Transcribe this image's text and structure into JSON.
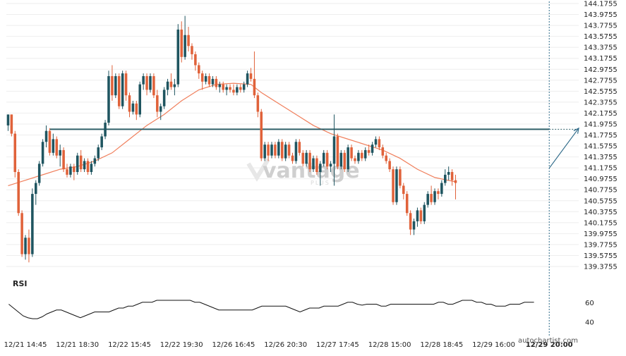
{
  "watermark": {
    "brand": "vantage",
    "sub": "PLUS"
  },
  "credit": "autochartist.com",
  "colors": {
    "bull": "#1f5560",
    "bear": "#e0623a",
    "ma": "#f07f5c",
    "level": "#2f5f68",
    "rsi": "#111111",
    "grid": "#eeeeee",
    "projection": "#2f6b8a"
  },
  "chart_data": {
    "type": "candlestick",
    "instrument_timeframe": "hourly",
    "price_axis": {
      "min": 139.3755,
      "max": 144.1755,
      "ticks": [
        "144.1755",
        "143.9755",
        "143.7755",
        "143.5755",
        "143.3755",
        "143.1755",
        "142.9755",
        "142.7755",
        "142.5755",
        "142.3755",
        "142.1755",
        "141.9755",
        "141.7755",
        "141.5755",
        "141.3755",
        "141.1755",
        "140.9755",
        "140.7755",
        "140.5755",
        "140.3755",
        "140.1755",
        "139.9755",
        "139.7755",
        "139.5755",
        "139.3755"
      ]
    },
    "time_axis": {
      "ticks": [
        {
          "label": "12/21 14:45",
          "bar": 5
        },
        {
          "label": "12/21 18:30",
          "bar": 20
        },
        {
          "label": "12/22 15:45",
          "bar": 35
        },
        {
          "label": "12/22 19:30",
          "bar": 50
        },
        {
          "label": "12/26 16:45",
          "bar": 65
        },
        {
          "label": "12/26 20:30",
          "bar": 80
        },
        {
          "label": "12/27 17:45",
          "bar": 95
        },
        {
          "label": "12/28 15:00",
          "bar": 110
        },
        {
          "label": "12/28 18:45",
          "bar": 125
        },
        {
          "label": "12/29 16:00",
          "bar": 140
        },
        {
          "label": "12/29 20:00",
          "bar": 156,
          "bold": true
        }
      ]
    },
    "bar_count_span": 165,
    "current_bar": 156,
    "horizontal_level": {
      "price": 141.88,
      "from_bar": 12,
      "to_bar": 156
    },
    "projection": {
      "from_bar": 156,
      "from_price": 141.17,
      "to_bar": 165,
      "to_price": 141.9
    },
    "candles": [
      [
        0,
        141.95,
        142.15,
        141.85,
        142.15
      ],
      [
        1,
        142.15,
        142.15,
        141.75,
        141.8
      ],
      [
        2,
        141.8,
        141.85,
        141.0,
        141.1
      ],
      [
        3,
        141.1,
        141.15,
        140.3,
        140.35
      ],
      [
        4,
        140.35,
        140.4,
        139.55,
        139.6
      ],
      [
        5,
        139.6,
        139.95,
        139.5,
        139.9
      ],
      [
        6,
        139.9,
        140.05,
        139.45,
        139.6
      ],
      [
        7,
        139.6,
        140.8,
        139.55,
        140.7
      ],
      [
        8,
        140.7,
        140.95,
        140.5,
        140.9
      ],
      [
        9,
        140.9,
        141.3,
        140.85,
        141.25
      ],
      [
        10,
        141.25,
        141.7,
        141.2,
        141.65
      ],
      [
        11,
        141.65,
        141.95,
        141.55,
        141.85
      ],
      [
        12,
        141.85,
        141.9,
        141.4,
        141.45
      ],
      [
        13,
        141.45,
        141.8,
        141.4,
        141.7
      ],
      [
        14,
        141.7,
        141.75,
        141.35,
        141.4
      ],
      [
        15,
        141.4,
        141.6,
        141.2,
        141.5
      ],
      [
        16,
        141.5,
        141.55,
        141.1,
        141.15
      ],
      [
        17,
        141.15,
        141.25,
        141.0,
        141.05
      ],
      [
        18,
        141.05,
        141.25,
        141.0,
        141.2
      ],
      [
        19,
        141.2,
        141.25,
        140.95,
        141.1
      ],
      [
        20,
        141.1,
        141.45,
        141.05,
        141.4
      ],
      [
        21,
        141.4,
        141.5,
        141.1,
        141.15
      ],
      [
        22,
        141.15,
        141.35,
        141.1,
        141.3
      ],
      [
        23,
        141.3,
        141.35,
        141.05,
        141.1
      ],
      [
        24,
        141.1,
        141.3,
        141.05,
        141.25
      ],
      [
        25,
        141.25,
        141.4,
        141.2,
        141.35
      ],
      [
        26,
        141.35,
        141.6,
        141.3,
        141.55
      ],
      [
        27,
        141.55,
        141.8,
        141.5,
        141.75
      ],
      [
        28,
        141.75,
        142.05,
        141.7,
        142.0
      ],
      [
        29,
        142.0,
        142.95,
        141.95,
        142.85
      ],
      [
        30,
        142.85,
        143.05,
        142.4,
        142.5
      ],
      [
        31,
        142.5,
        142.9,
        142.45,
        142.85
      ],
      [
        32,
        142.85,
        142.9,
        142.25,
        142.3
      ],
      [
        33,
        142.3,
        142.95,
        142.25,
        142.9
      ],
      [
        34,
        142.9,
        142.95,
        142.4,
        142.5
      ],
      [
        35,
        142.5,
        142.55,
        142.1,
        142.2
      ],
      [
        36,
        142.2,
        142.4,
        142.15,
        142.35
      ],
      [
        37,
        142.35,
        142.4,
        142.05,
        142.15
      ],
      [
        38,
        142.15,
        142.75,
        142.1,
        142.7
      ],
      [
        39,
        142.7,
        142.9,
        142.6,
        142.85
      ],
      [
        40,
        142.85,
        142.9,
        142.5,
        142.6
      ],
      [
        41,
        142.6,
        142.9,
        142.55,
        142.85
      ],
      [
        42,
        142.85,
        142.9,
        142.45,
        142.5
      ],
      [
        43,
        142.5,
        142.6,
        142.1,
        142.2
      ],
      [
        44,
        142.2,
        142.35,
        142.05,
        142.3
      ],
      [
        45,
        142.3,
        142.65,
        142.25,
        142.6
      ],
      [
        46,
        142.6,
        142.8,
        142.5,
        142.75
      ],
      [
        47,
        142.75,
        142.9,
        142.6,
        142.65
      ],
      [
        48,
        142.65,
        142.8,
        142.5,
        142.7
      ],
      [
        49,
        142.7,
        143.8,
        142.65,
        143.7
      ],
      [
        50,
        143.7,
        143.85,
        143.1,
        143.2
      ],
      [
        51,
        143.2,
        143.95,
        143.15,
        143.6
      ],
      [
        52,
        143.6,
        143.75,
        143.3,
        143.4
      ],
      [
        53,
        143.4,
        143.45,
        143.15,
        143.25
      ],
      [
        54,
        143.25,
        143.3,
        142.95,
        143.05
      ],
      [
        55,
        143.05,
        143.1,
        142.8,
        142.9
      ],
      [
        56,
        142.9,
        142.95,
        142.6,
        142.75
      ],
      [
        57,
        142.75,
        142.9,
        142.7,
        142.85
      ],
      [
        58,
        142.85,
        142.9,
        142.65,
        142.7
      ],
      [
        59,
        142.7,
        142.85,
        142.65,
        142.8
      ],
      [
        60,
        142.8,
        142.85,
        142.6,
        142.65
      ],
      [
        61,
        142.65,
        142.75,
        142.55,
        142.7
      ],
      [
        62,
        142.7,
        142.75,
        142.55,
        142.6
      ],
      [
        63,
        142.6,
        142.7,
        142.5,
        142.65
      ],
      [
        64,
        142.65,
        142.7,
        142.55,
        142.6
      ],
      [
        65,
        142.6,
        142.7,
        142.5,
        142.55
      ],
      [
        66,
        142.55,
        142.7,
        142.5,
        142.65
      ],
      [
        67,
        142.65,
        142.7,
        142.55,
        142.6
      ],
      [
        68,
        142.6,
        142.75,
        142.55,
        142.7
      ],
      [
        69,
        142.7,
        142.95,
        142.65,
        142.9
      ],
      [
        70,
        142.9,
        143.0,
        142.75,
        142.8
      ],
      [
        71,
        142.8,
        143.3,
        142.45,
        142.5
      ],
      [
        72,
        142.5,
        142.55,
        142.1,
        142.2
      ],
      [
        73,
        142.2,
        142.25,
        141.3,
        141.35
      ],
      [
        74,
        141.35,
        141.65,
        141.3,
        141.6
      ],
      [
        75,
        141.6,
        141.65,
        141.3,
        141.4
      ],
      [
        76,
        141.4,
        141.65,
        141.35,
        141.6
      ],
      [
        77,
        141.6,
        141.65,
        141.35,
        141.4
      ],
      [
        78,
        141.4,
        141.7,
        141.35,
        141.65
      ],
      [
        79,
        141.65,
        141.7,
        141.3,
        141.35
      ],
      [
        80,
        141.35,
        141.65,
        141.3,
        141.6
      ],
      [
        81,
        141.6,
        141.65,
        141.35,
        141.4
      ],
      [
        82,
        141.4,
        141.45,
        141.25,
        141.3
      ],
      [
        83,
        141.3,
        141.7,
        141.25,
        141.65
      ],
      [
        84,
        141.65,
        141.7,
        141.4,
        141.45
      ],
      [
        85,
        141.45,
        141.5,
        141.2,
        141.25
      ],
      [
        86,
        141.25,
        141.5,
        141.2,
        141.45
      ],
      [
        87,
        141.45,
        141.5,
        141.1,
        141.15
      ],
      [
        88,
        141.15,
        141.4,
        141.1,
        141.35
      ],
      [
        89,
        141.35,
        141.4,
        141.05,
        141.1
      ],
      [
        90,
        141.1,
        141.3,
        140.85,
        141.25
      ],
      [
        91,
        141.25,
        141.5,
        141.2,
        141.45
      ],
      [
        92,
        141.45,
        141.5,
        141.15,
        141.2
      ],
      [
        93,
        141.2,
        141.3,
        141.1,
        141.25
      ],
      [
        94,
        141.25,
        142.15,
        140.85,
        141.75
      ],
      [
        95,
        141.75,
        141.8,
        141.15,
        141.2
      ],
      [
        96,
        141.2,
        141.5,
        141.15,
        141.45
      ],
      [
        97,
        141.45,
        141.5,
        141.1,
        141.15
      ],
      [
        98,
        141.15,
        141.6,
        141.1,
        141.55
      ],
      [
        99,
        141.55,
        141.6,
        141.3,
        141.35
      ],
      [
        100,
        141.35,
        141.4,
        141.25,
        141.3
      ],
      [
        101,
        141.3,
        141.5,
        141.25,
        141.45
      ],
      [
        102,
        141.45,
        141.5,
        141.3,
        141.35
      ],
      [
        103,
        141.35,
        141.55,
        141.3,
        141.5
      ],
      [
        104,
        141.5,
        141.6,
        141.4,
        141.45
      ],
      [
        105,
        141.45,
        141.65,
        141.4,
        141.6
      ],
      [
        106,
        141.6,
        141.75,
        141.55,
        141.7
      ],
      [
        107,
        141.7,
        141.75,
        141.5,
        141.55
      ],
      [
        108,
        141.55,
        141.6,
        141.35,
        141.4
      ],
      [
        109,
        141.4,
        141.45,
        141.25,
        141.3
      ],
      [
        110,
        141.3,
        141.35,
        141.1,
        141.15
      ],
      [
        111,
        141.15,
        141.2,
        140.5,
        140.55
      ],
      [
        112,
        140.55,
        141.2,
        140.5,
        141.15
      ],
      [
        113,
        141.15,
        141.2,
        140.8,
        140.85
      ],
      [
        114,
        140.85,
        140.9,
        140.6,
        140.7
      ],
      [
        115,
        140.7,
        140.75,
        140.3,
        140.35
      ],
      [
        116,
        140.35,
        140.4,
        139.95,
        140.05
      ],
      [
        117,
        140.05,
        140.25,
        139.95,
        140.2
      ],
      [
        118,
        140.2,
        140.45,
        140.1,
        140.4
      ],
      [
        119,
        140.4,
        140.45,
        140.15,
        140.2
      ],
      [
        120,
        140.2,
        140.55,
        140.15,
        140.5
      ],
      [
        121,
        140.5,
        140.75,
        140.45,
        140.7
      ],
      [
        122,
        140.7,
        140.85,
        140.5,
        140.55
      ],
      [
        123,
        140.55,
        140.8,
        140.5,
        140.75
      ],
      [
        124,
        140.75,
        140.8,
        140.6,
        140.7
      ],
      [
        125,
        140.7,
        140.95,
        140.65,
        140.9
      ],
      [
        126,
        140.9,
        141.15,
        140.85,
        141.05
      ],
      [
        127,
        141.05,
        141.2,
        140.95,
        141.1
      ],
      [
        128,
        141.1,
        141.15,
        140.85,
        140.95
      ],
      [
        129,
        140.95,
        141.05,
        140.6,
        140.9
      ]
    ],
    "ma": [
      [
        0,
        140.85
      ],
      [
        5,
        140.95
      ],
      [
        10,
        141.05
      ],
      [
        15,
        141.15
      ],
      [
        20,
        141.2
      ],
      [
        25,
        141.3
      ],
      [
        30,
        141.45
      ],
      [
        35,
        141.7
      ],
      [
        40,
        141.95
      ],
      [
        45,
        142.15
      ],
      [
        50,
        142.4
      ],
      [
        55,
        142.6
      ],
      [
        60,
        142.7
      ],
      [
        65,
        142.72
      ],
      [
        70,
        142.7
      ],
      [
        73,
        142.55
      ],
      [
        78,
        142.35
      ],
      [
        83,
        142.15
      ],
      [
        88,
        141.95
      ],
      [
        93,
        141.8
      ],
      [
        98,
        141.7
      ],
      [
        103,
        141.6
      ],
      [
        108,
        141.5
      ],
      [
        113,
        141.35
      ],
      [
        118,
        141.15
      ],
      [
        123,
        141.0
      ],
      [
        129,
        140.92
      ]
    ],
    "rsi": {
      "label": "RSI",
      "range": [
        30,
        70
      ],
      "ticks": [
        {
          "label": "60",
          "value": 60
        },
        {
          "label": "40",
          "value": 40
        }
      ],
      "values": [
        58,
        54,
        50,
        46,
        44,
        43,
        43,
        45,
        48,
        50,
        52,
        52,
        50,
        48,
        46,
        44,
        46,
        48,
        50,
        50,
        50,
        50,
        52,
        54,
        54,
        56,
        56,
        58,
        60,
        60,
        60,
        62,
        62,
        62,
        62,
        62,
        62,
        62,
        62,
        60,
        60,
        58,
        56,
        54,
        52,
        52,
        52,
        52,
        52,
        52,
        52,
        52,
        54,
        56,
        56,
        56,
        56,
        56,
        56,
        54,
        52,
        50,
        52,
        54,
        54,
        54,
        56,
        56,
        56,
        56,
        58,
        60,
        60,
        58,
        57,
        58,
        58,
        58,
        56,
        56,
        58,
        58,
        58,
        58,
        58,
        58,
        58,
        58,
        58,
        58,
        60,
        60,
        58,
        58,
        60,
        62,
        62,
        62,
        60,
        60,
        58,
        58,
        56,
        56,
        56,
        58,
        58,
        58,
        60,
        60,
        60
      ]
    }
  }
}
